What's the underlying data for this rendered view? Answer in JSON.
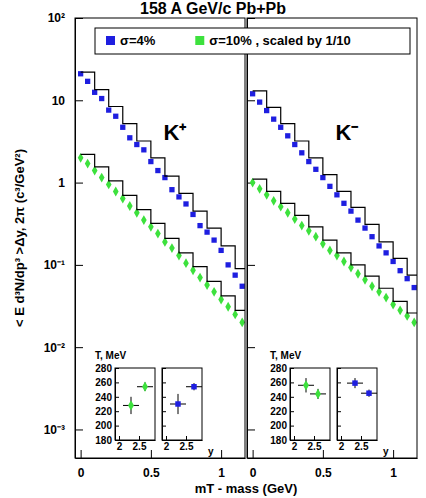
{
  "chart_data": {
    "type": "scatter",
    "title": "158 A GeV/c Pb+Pb",
    "xlabel": "mT - mass (GeV)",
    "ylabel": "< E d³N/dp³ >Δy, 2π (c³/GeV²)",
    "log": "y",
    "legend": "top",
    "xlim": [
      -0.04,
      1.17
    ],
    "xticks": [
      0,
      0.5,
      1
    ],
    "ylim": [
      0.00045,
      100
    ],
    "yticks": [
      {
        "value": 0.001,
        "label": "10⁻³"
      },
      {
        "value": 0.01,
        "label": "10⁻²"
      },
      {
        "value": 0.1,
        "label": "10⁻¹"
      },
      1,
      10,
      {
        "value": 100,
        "label": "10²"
      }
    ],
    "panels": [
      {
        "label": "K⁺",
        "series": [
          {
            "name": "σ=4%",
            "color": "#1e1ee0",
            "marker": "square",
            "x": [
              0,
              0.05,
              0.1,
              0.15,
              0.2,
              0.25,
              0.3,
              0.35,
              0.4,
              0.45,
              0.5,
              0.55,
              0.6,
              0.65,
              0.7,
              0.75,
              0.8,
              0.85,
              0.9,
              0.95,
              1,
              1.05,
              1.1,
              1.15
            ],
            "values": [
              21,
              17,
              12.5,
              10.5,
              7.6,
              6.4,
              4.7,
              3.5,
              2.9,
              2.5,
              1.8,
              1.4,
              1.15,
              0.82,
              0.67,
              0.55,
              0.41,
              0.3,
              0.25,
              0.2,
              0.15,
              0.1,
              0.075,
              0.055
            ]
          },
          {
            "name": "σ=10% , scaled by 1/10",
            "color": "#3de13d",
            "marker": "diamond",
            "x": [
              0,
              0.05,
              0.1,
              0.15,
              0.2,
              0.25,
              0.3,
              0.35,
              0.4,
              0.45,
              0.5,
              0.55,
              0.6,
              0.65,
              0.7,
              0.75,
              0.8,
              0.85,
              0.9,
              0.95,
              1,
              1.05,
              1.1,
              1.15
            ],
            "values": [
              2.0,
              1.7,
              1.4,
              1.15,
              0.95,
              0.78,
              0.64,
              0.52,
              0.43,
              0.35,
              0.29,
              0.24,
              0.19,
              0.16,
              0.13,
              0.105,
              0.086,
              0.07,
              0.057,
              0.047,
              0.038,
              0.031,
              0.025,
              0.02
            ]
          },
          {
            "type": "line",
            "line_style": "step",
            "color": "#000000",
            "x": [
              0,
              0.1,
              0.2,
              0.3,
              0.4,
              0.5,
              0.6,
              0.7,
              0.8,
              0.9,
              1,
              1.1,
              1.2
            ],
            "values": [
              22,
              13.5,
              8.4,
              5.2,
              3.2,
              2.0,
              1.2,
              0.74,
              0.45,
              0.28,
              0.17,
              0.09,
              0.09
            ]
          },
          {
            "type": "line",
            "line_style": "step",
            "color": "#000000",
            "x": [
              0,
              0.1,
              0.2,
              0.3,
              0.4,
              0.5,
              0.6,
              0.7,
              0.8,
              0.9,
              1,
              1.1,
              1.2
            ],
            "values": [
              2.2,
              1.55,
              1.05,
              0.7,
              0.47,
              0.32,
              0.21,
              0.14,
              0.095,
              0.063,
              0.042,
              0.028,
              0.028
            ]
          }
        ],
        "inset": {
          "ylabel": "T, MeV",
          "xlabel": "y",
          "xlim": [
            1.9,
            2.9
          ],
          "ylim": [
            180,
            280
          ],
          "xticks": [
            2,
            2.5
          ],
          "yticks": [
            180,
            200,
            220,
            240,
            260,
            280
          ],
          "series": [
            {
              "color": "#3de13d",
              "marker": "diamond",
              "x": [
                2.3,
                2.65
              ],
              "values": [
                228,
                254
              ],
              "errors": [
                12,
                6
              ],
              "x_errors": [
                0.2,
                0.2
              ]
            },
            {
              "color": "#1e1ee0",
              "marker": "square",
              "x": [
                2.3,
                2.7
              ],
              "values": [
                230,
                254
              ],
              "errors": [
                14,
                5
              ],
              "x_errors": [
                0.2,
                0.2
              ]
            }
          ]
        }
      },
      {
        "label": "K⁻",
        "series": [
          {
            "color": "#1e1ee0",
            "marker": "square",
            "x": [
              0,
              0.05,
              0.1,
              0.15,
              0.2,
              0.25,
              0.3,
              0.35,
              0.4,
              0.45,
              0.5,
              0.55,
              0.6,
              0.65,
              0.7,
              0.75,
              0.8,
              0.85,
              0.9,
              0.95,
              1,
              1.05,
              1.1,
              1.15
            ],
            "values": [
              12,
              9.5,
              7.5,
              5.9,
              4.7,
              3.7,
              2.9,
              2.3,
              1.8,
              1.45,
              1.15,
              0.9,
              0.71,
              0.56,
              0.45,
              0.35,
              0.28,
              0.22,
              0.17,
              0.14,
              0.11,
              0.085,
              0.068,
              0.053
            ]
          },
          {
            "color": "#3de13d",
            "marker": "diamond",
            "x": [
              0,
              0.05,
              0.1,
              0.15,
              0.2,
              0.25,
              0.3,
              0.35,
              0.4,
              0.45,
              0.5,
              0.55,
              0.6,
              0.65,
              0.7,
              0.75,
              0.8,
              0.85,
              0.9,
              0.95,
              1,
              1.05,
              1.1,
              1.15
            ],
            "values": [
              1.0,
              0.84,
              0.71,
              0.6,
              0.51,
              0.43,
              0.36,
              0.3,
              0.26,
              0.22,
              0.18,
              0.15,
              0.13,
              0.11,
              0.093,
              0.078,
              0.066,
              0.055,
              0.047,
              0.04,
              0.033,
              0.028,
              0.024,
              0.02
            ]
          },
          {
            "type": "line",
            "line_style": "step",
            "color": "#000000",
            "x": [
              0,
              0.1,
              0.2,
              0.3,
              0.4,
              0.5,
              0.6,
              0.7,
              0.8,
              0.9,
              1,
              1.1,
              1.2
            ],
            "values": [
              13,
              8.2,
              5.2,
              3.2,
              2.0,
              1.25,
              0.78,
              0.5,
              0.31,
              0.19,
              0.12,
              0.075,
              0.075
            ]
          },
          {
            "type": "line",
            "line_style": "step",
            "color": "#000000",
            "x": [
              0,
              0.1,
              0.2,
              0.3,
              0.4,
              0.5,
              0.6,
              0.7,
              0.8,
              0.9,
              1,
              1.1,
              1.2
            ],
            "values": [
              1.1,
              0.78,
              0.56,
              0.4,
              0.29,
              0.2,
              0.14,
              0.1,
              0.073,
              0.052,
              0.036,
              0.026,
              0.026
            ]
          }
        ],
        "inset": {
          "ylabel": "T, MeV",
          "xlabel": "y",
          "xlim": [
            1.9,
            2.9
          ],
          "ylim": [
            180,
            280
          ],
          "xticks": [
            2,
            2.5
          ],
          "yticks": [
            180,
            200,
            220,
            240,
            260,
            280
          ],
          "series": [
            {
              "color": "#3de13d",
              "marker": "diamond",
              "x": [
                2.3,
                2.6
              ],
              "values": [
                256,
                244
              ],
              "errors": [
                10,
                7
              ],
              "x_errors": [
                0.2,
                0.2
              ]
            },
            {
              "color": "#1e1ee0",
              "marker": "square",
              "x": [
                2.35,
                2.7
              ],
              "values": [
                259,
                245
              ],
              "errors": [
                7,
                5
              ],
              "x_errors": [
                0.2,
                0.2
              ]
            }
          ]
        }
      }
    ]
  }
}
